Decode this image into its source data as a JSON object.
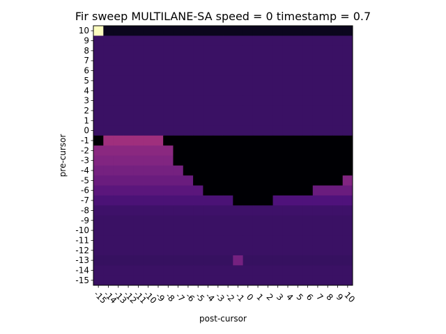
{
  "chart_data": {
    "type": "heatmap",
    "title": "Fir sweep MULTILANE-SA speed = 0 timestamp = 0.7",
    "xlabel": "post-cursor",
    "ylabel": "pre-cursor",
    "x": [
      -15,
      -14,
      -13,
      -12,
      -11,
      -10,
      -9,
      -8,
      -7,
      -6,
      -5,
      -4,
      -3,
      -2,
      -1,
      0,
      1,
      2,
      3,
      4,
      5,
      6,
      7,
      8,
      9,
      10
    ],
    "y": [
      10,
      9,
      8,
      7,
      6,
      5,
      4,
      3,
      2,
      1,
      0,
      -1,
      -2,
      -3,
      -4,
      -5,
      -6,
      -7,
      -8,
      -9,
      -10,
      -11,
      -12,
      -13,
      -14,
      -15
    ],
    "colormap": "magma",
    "value_range": [
      0,
      1
    ],
    "grid": false,
    "values": [
      [
        1.0,
        0.05,
        0.05,
        0.05,
        0.05,
        0.05,
        0.05,
        0.05,
        0.05,
        0.05,
        0.05,
        0.05,
        0.05,
        0.05,
        0.05,
        0.05,
        0.05,
        0.05,
        0.05,
        0.05,
        0.05,
        0.05,
        0.05,
        0.05,
        0.05,
        0.05
      ],
      [
        0.2,
        0.2,
        0.2,
        0.2,
        0.2,
        0.2,
        0.2,
        0.2,
        0.2,
        0.2,
        0.2,
        0.2,
        0.2,
        0.2,
        0.2,
        0.2,
        0.2,
        0.2,
        0.2,
        0.2,
        0.2,
        0.2,
        0.2,
        0.2,
        0.2,
        0.2
      ],
      [
        0.2,
        0.2,
        0.2,
        0.2,
        0.2,
        0.2,
        0.2,
        0.2,
        0.2,
        0.2,
        0.2,
        0.2,
        0.2,
        0.2,
        0.2,
        0.2,
        0.2,
        0.2,
        0.2,
        0.2,
        0.2,
        0.2,
        0.2,
        0.2,
        0.2,
        0.2
      ],
      [
        0.2,
        0.2,
        0.2,
        0.2,
        0.2,
        0.2,
        0.2,
        0.2,
        0.2,
        0.2,
        0.2,
        0.2,
        0.2,
        0.2,
        0.2,
        0.2,
        0.2,
        0.2,
        0.2,
        0.2,
        0.2,
        0.2,
        0.2,
        0.2,
        0.2,
        0.2
      ],
      [
        0.2,
        0.2,
        0.2,
        0.2,
        0.2,
        0.2,
        0.2,
        0.2,
        0.2,
        0.2,
        0.2,
        0.2,
        0.2,
        0.2,
        0.2,
        0.2,
        0.2,
        0.2,
        0.2,
        0.2,
        0.2,
        0.2,
        0.2,
        0.2,
        0.2,
        0.2
      ],
      [
        0.2,
        0.2,
        0.2,
        0.2,
        0.2,
        0.2,
        0.2,
        0.2,
        0.2,
        0.2,
        0.2,
        0.2,
        0.2,
        0.2,
        0.2,
        0.2,
        0.2,
        0.2,
        0.2,
        0.2,
        0.2,
        0.2,
        0.2,
        0.2,
        0.2,
        0.2
      ],
      [
        0.2,
        0.2,
        0.2,
        0.2,
        0.2,
        0.2,
        0.2,
        0.2,
        0.2,
        0.2,
        0.2,
        0.2,
        0.2,
        0.2,
        0.2,
        0.2,
        0.2,
        0.2,
        0.2,
        0.2,
        0.2,
        0.2,
        0.2,
        0.2,
        0.2,
        0.2
      ],
      [
        0.2,
        0.2,
        0.2,
        0.2,
        0.2,
        0.2,
        0.2,
        0.2,
        0.2,
        0.2,
        0.2,
        0.2,
        0.2,
        0.2,
        0.2,
        0.2,
        0.2,
        0.2,
        0.2,
        0.2,
        0.2,
        0.2,
        0.2,
        0.2,
        0.2,
        0.2
      ],
      [
        0.2,
        0.2,
        0.2,
        0.2,
        0.2,
        0.2,
        0.2,
        0.2,
        0.2,
        0.2,
        0.2,
        0.2,
        0.2,
        0.2,
        0.2,
        0.2,
        0.2,
        0.2,
        0.2,
        0.2,
        0.2,
        0.2,
        0.2,
        0.2,
        0.2,
        0.2
      ],
      [
        0.2,
        0.2,
        0.2,
        0.2,
        0.2,
        0.2,
        0.2,
        0.2,
        0.2,
        0.2,
        0.2,
        0.2,
        0.2,
        0.2,
        0.2,
        0.2,
        0.2,
        0.2,
        0.2,
        0.2,
        0.2,
        0.2,
        0.2,
        0.2,
        0.2,
        0.2
      ],
      [
        0.2,
        0.2,
        0.2,
        0.2,
        0.2,
        0.2,
        0.2,
        0.2,
        0.2,
        0.2,
        0.2,
        0.2,
        0.2,
        0.2,
        0.2,
        0.2,
        0.2,
        0.2,
        0.2,
        0.2,
        0.2,
        0.2,
        0.2,
        0.2,
        0.2,
        0.2
      ],
      [
        0,
        0.45,
        0.45,
        0.45,
        0.45,
        0.45,
        0.45,
        0,
        0,
        0,
        0,
        0,
        0,
        0,
        0,
        0,
        0,
        0,
        0,
        0,
        0,
        0,
        0,
        0,
        0,
        0
      ],
      [
        0.4,
        0.4,
        0.4,
        0.4,
        0.4,
        0.4,
        0.4,
        0.4,
        0,
        0,
        0,
        0,
        0,
        0,
        0,
        0,
        0,
        0,
        0,
        0,
        0,
        0,
        0,
        0,
        0,
        0
      ],
      [
        0.38,
        0.38,
        0.38,
        0.38,
        0.38,
        0.38,
        0.38,
        0.38,
        0,
        0,
        0,
        0,
        0,
        0,
        0,
        0,
        0,
        0,
        0,
        0,
        0,
        0,
        0,
        0,
        0,
        0
      ],
      [
        0.35,
        0.35,
        0.35,
        0.35,
        0.35,
        0.35,
        0.35,
        0.35,
        0.35,
        0,
        0,
        0,
        0,
        0,
        0,
        0,
        0,
        0,
        0,
        0,
        0,
        0,
        0,
        0,
        0,
        0
      ],
      [
        0.32,
        0.32,
        0.32,
        0.32,
        0.32,
        0.32,
        0.32,
        0.32,
        0.32,
        0.32,
        0,
        0,
        0,
        0,
        0,
        0,
        0,
        0,
        0,
        0,
        0,
        0,
        0,
        0,
        0,
        0.38
      ],
      [
        0.28,
        0.28,
        0.28,
        0.28,
        0.28,
        0.28,
        0.28,
        0.28,
        0.28,
        0.28,
        0.28,
        0,
        0,
        0,
        0,
        0,
        0,
        0,
        0,
        0,
        0,
        0,
        0.32,
        0.32,
        0.32,
        0.32
      ],
      [
        0.24,
        0.24,
        0.24,
        0.24,
        0.24,
        0.24,
        0.24,
        0.24,
        0.24,
        0.24,
        0.24,
        0.24,
        0.24,
        0.24,
        0,
        0,
        0,
        0,
        0.25,
        0.25,
        0.25,
        0.25,
        0.25,
        0.25,
        0.25,
        0.25
      ],
      [
        0.21,
        0.21,
        0.21,
        0.21,
        0.21,
        0.21,
        0.21,
        0.21,
        0.21,
        0.21,
        0.21,
        0.21,
        0.21,
        0.21,
        0.21,
        0.21,
        0.21,
        0.21,
        0.21,
        0.21,
        0.21,
        0.21,
        0.21,
        0.21,
        0.21,
        0.21
      ],
      [
        0.2,
        0.2,
        0.2,
        0.2,
        0.2,
        0.2,
        0.2,
        0.2,
        0.2,
        0.2,
        0.2,
        0.2,
        0.2,
        0.2,
        0.2,
        0.2,
        0.2,
        0.2,
        0.2,
        0.2,
        0.2,
        0.2,
        0.2,
        0.2,
        0.2,
        0.2
      ],
      [
        0.2,
        0.2,
        0.2,
        0.2,
        0.2,
        0.2,
        0.2,
        0.2,
        0.2,
        0.2,
        0.2,
        0.2,
        0.2,
        0.2,
        0.2,
        0.2,
        0.2,
        0.2,
        0.2,
        0.2,
        0.2,
        0.2,
        0.2,
        0.2,
        0.2,
        0.2
      ],
      [
        0.2,
        0.2,
        0.2,
        0.2,
        0.2,
        0.2,
        0.2,
        0.2,
        0.2,
        0.2,
        0.2,
        0.2,
        0.2,
        0.2,
        0.2,
        0.2,
        0.2,
        0.2,
        0.2,
        0.2,
        0.2,
        0.2,
        0.2,
        0.2,
        0.2,
        0.2
      ],
      [
        0.2,
        0.2,
        0.2,
        0.2,
        0.2,
        0.2,
        0.2,
        0.2,
        0.2,
        0.2,
        0.2,
        0.2,
        0.2,
        0.2,
        0.2,
        0.2,
        0.2,
        0.2,
        0.2,
        0.2,
        0.2,
        0.2,
        0.2,
        0.2,
        0.2,
        0.2
      ],
      [
        0.19,
        0.19,
        0.19,
        0.19,
        0.19,
        0.19,
        0.19,
        0.19,
        0.19,
        0.19,
        0.19,
        0.19,
        0.19,
        0.19,
        0.35,
        0.19,
        0.19,
        0.19,
        0.19,
        0.19,
        0.19,
        0.19,
        0.19,
        0.19,
        0.19,
        0.19
      ],
      [
        0.2,
        0.2,
        0.2,
        0.2,
        0.2,
        0.2,
        0.2,
        0.2,
        0.2,
        0.2,
        0.2,
        0.2,
        0.2,
        0.2,
        0.2,
        0.2,
        0.2,
        0.2,
        0.2,
        0.2,
        0.2,
        0.2,
        0.2,
        0.2,
        0.2,
        0.2
      ],
      [
        0.2,
        0.2,
        0.2,
        0.2,
        0.2,
        0.2,
        0.2,
        0.2,
        0.2,
        0.2,
        0.2,
        0.2,
        0.2,
        0.2,
        0.2,
        0.2,
        0.2,
        0.2,
        0.2,
        0.2,
        0.2,
        0.2,
        0.2,
        0.2,
        0.2,
        0.2
      ]
    ]
  }
}
